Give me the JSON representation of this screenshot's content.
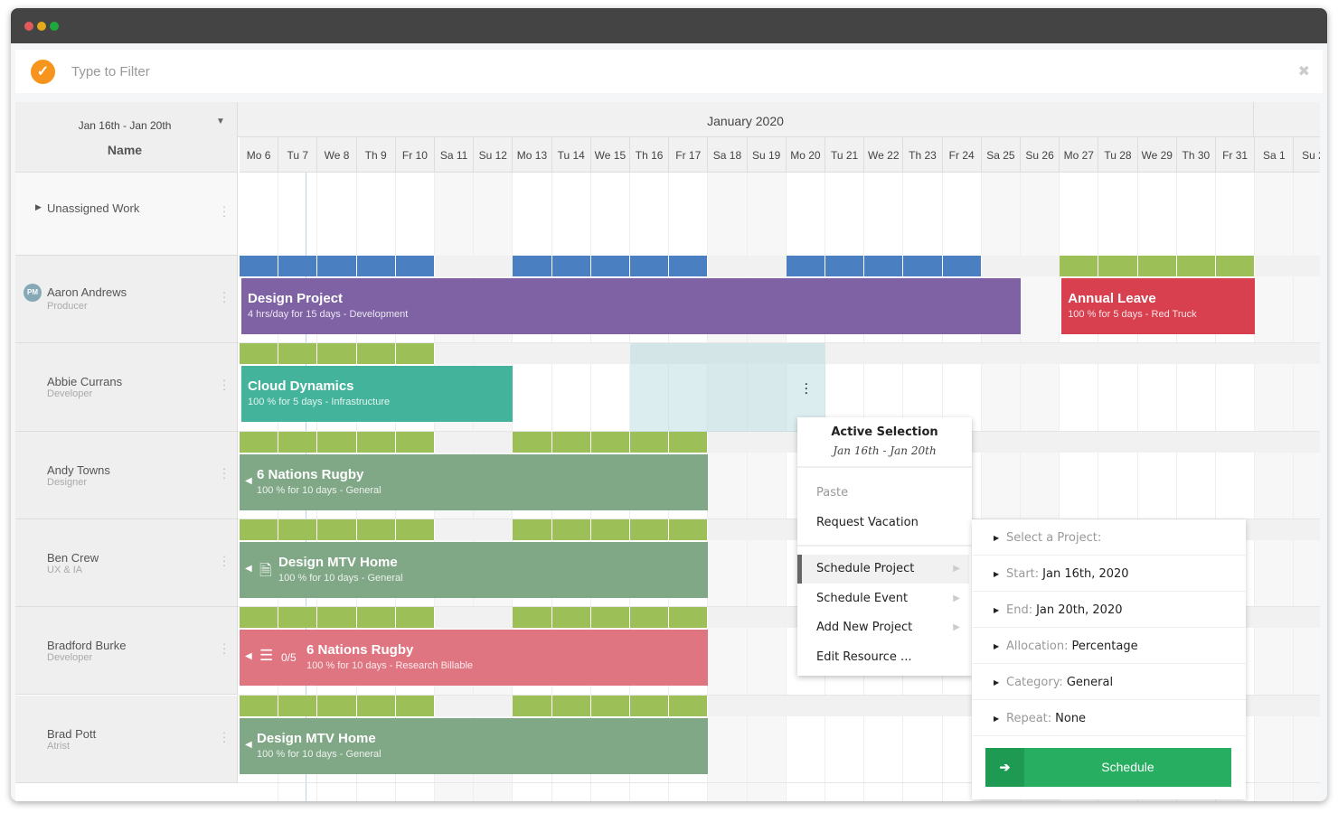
{
  "window": {
    "controls": [
      {
        "name": "close",
        "color": "#e0595b"
      },
      {
        "name": "minimize",
        "color": "#e3aa1a"
      },
      {
        "name": "maximize",
        "color": "#1fa83c"
      }
    ]
  },
  "filter": {
    "placeholder": "Type to Filter",
    "logo_icon": "chevron-down-circle-icon",
    "close_icon": "close-icon"
  },
  "header": {
    "range": "Jan 16th - Jan 20th",
    "name_label": "Name",
    "month": "January 2020"
  },
  "days": [
    {
      "label": "Mo 6",
      "day": 6
    },
    {
      "label": "Tu 7",
      "day": 7
    },
    {
      "label": "We 8",
      "day": 8
    },
    {
      "label": "Th 9",
      "day": 9
    },
    {
      "label": "Fr 10",
      "day": 10
    },
    {
      "label": "Sa 11",
      "day": 11,
      "weekend": true
    },
    {
      "label": "Su 12",
      "day": 12,
      "weekend": true
    },
    {
      "label": "Mo 13",
      "day": 13
    },
    {
      "label": "Tu 14",
      "day": 14
    },
    {
      "label": "We 15",
      "day": 15
    },
    {
      "label": "Th 16",
      "day": 16
    },
    {
      "label": "Fr 17",
      "day": 17
    },
    {
      "label": "Sa 18",
      "day": 18,
      "weekend": true
    },
    {
      "label": "Su 19",
      "day": 19,
      "weekend": true
    },
    {
      "label": "Mo 20",
      "day": 20
    },
    {
      "label": "Tu 21",
      "day": 21
    },
    {
      "label": "We 22",
      "day": 22
    },
    {
      "label": "Th 23",
      "day": 23
    },
    {
      "label": "Fr 24",
      "day": 24
    },
    {
      "label": "Sa 25",
      "day": 25,
      "weekend": true
    },
    {
      "label": "Su 26",
      "day": 26,
      "weekend": true
    },
    {
      "label": "Mo 27",
      "day": 27
    },
    {
      "label": "Tu 28",
      "day": 28
    },
    {
      "label": "We 29",
      "day": 29
    },
    {
      "label": "Th 30",
      "day": 30
    },
    {
      "label": "Fr 31",
      "day": 31
    },
    {
      "label": "Sa 1",
      "day": 32,
      "weekend": true
    },
    {
      "label": "Su 2",
      "day": 33,
      "weekend": true
    }
  ],
  "today_day": 7,
  "colors": {
    "blue": "#4a7fc1",
    "green": "#9dbf58",
    "purple": "#7e62a3",
    "red": "#d9404f",
    "teal": "#44b39c",
    "sage": "#80a786",
    "pink": "#e07582"
  },
  "unassigned": {
    "label": "Unassigned Work"
  },
  "resources": [
    {
      "name": "Aaron Andrews",
      "role": "Producer",
      "avatar": "PM",
      "util": [
        {
          "from": 6,
          "to": 10,
          "color": "blue"
        },
        {
          "from": 13,
          "to": 17,
          "color": "blue"
        },
        {
          "from": 20,
          "to": 24,
          "color": "blue"
        },
        {
          "from": 27,
          "to": 31,
          "color": "green"
        }
      ],
      "bars": [
        {
          "title": "Design Project",
          "sub": "4 hrs/day for 15 days - Development",
          "from": 6,
          "to": 25,
          "color": "purple"
        },
        {
          "title": "Annual Leave",
          "sub": "100 % for 5 days - Red Truck",
          "from": 27,
          "to": 31,
          "color": "red"
        }
      ]
    },
    {
      "name": "Abbie Currans",
      "role": "Developer",
      "util": [
        {
          "from": 6,
          "to": 10,
          "color": "green"
        }
      ],
      "bars": [
        {
          "title": "Cloud Dynamics",
          "sub": "100 % for 5 days - Infrastructure",
          "from": 6,
          "to": 12,
          "color": "teal"
        }
      ],
      "selection": {
        "from": 16,
        "to": 20
      }
    },
    {
      "name": "Andy Towns",
      "role": "Designer",
      "util": [
        {
          "from": 6,
          "to": 10,
          "color": "green"
        },
        {
          "from": 13,
          "to": 17,
          "color": "green"
        }
      ],
      "bars": [
        {
          "title": "6 Nations Rugby",
          "sub": "100 % for 10 days - General",
          "from": 6,
          "to": 17,
          "color": "sage",
          "arrow": true
        }
      ]
    },
    {
      "name": "Ben Crew",
      "role": "UX & IA",
      "util": [
        {
          "from": 6,
          "to": 10,
          "color": "green"
        },
        {
          "from": 13,
          "to": 17,
          "color": "green"
        }
      ],
      "bars": [
        {
          "title": "Design MTV Home",
          "sub": "100 % for 10 days - General",
          "from": 6,
          "to": 17,
          "color": "sage",
          "arrow": true,
          "icon": "file-icon"
        }
      ]
    },
    {
      "name": "Bradford Burke",
      "role": "Developer",
      "util": [
        {
          "from": 6,
          "to": 10,
          "color": "green"
        },
        {
          "from": 13,
          "to": 17,
          "color": "green"
        }
      ],
      "bars": [
        {
          "title": "6 Nations Rugby",
          "sub": "100 % for 10 days - Research Billable",
          "from": 6,
          "to": 17,
          "color": "pink",
          "arrow": true,
          "icon": "checklist-icon",
          "tasks": "0/5"
        }
      ]
    },
    {
      "name": "Brad Pott",
      "role": "Atrist",
      "util": [
        {
          "from": 6,
          "to": 10,
          "color": "green"
        },
        {
          "from": 13,
          "to": 17,
          "color": "green"
        }
      ],
      "bars": [
        {
          "title": "Design MTV Home",
          "sub": "100 % for 10 days - General",
          "from": 6,
          "to": 17,
          "color": "sage",
          "arrow": true
        }
      ]
    }
  ],
  "context_menu": {
    "title": "Active Selection",
    "range": "Jan 16th - Jan 20th",
    "paste": "Paste",
    "request_vacation": "Request Vacation",
    "schedule_project": "Schedule Project",
    "schedule_event": "Schedule Event",
    "add_new_project": "Add New Project",
    "edit_resource": "Edit Resource ..."
  },
  "submenu": {
    "items": [
      {
        "key": "Select a Project:",
        "value": ""
      },
      {
        "key": "Start:",
        "value": "Jan 16th, 2020"
      },
      {
        "key": "End:",
        "value": "Jan 20th, 2020"
      },
      {
        "key": "Allocation:",
        "value": "Percentage"
      },
      {
        "key": "Category:",
        "value": "General"
      },
      {
        "key": "Repeat:",
        "value": "None"
      }
    ],
    "button": "Schedule"
  }
}
